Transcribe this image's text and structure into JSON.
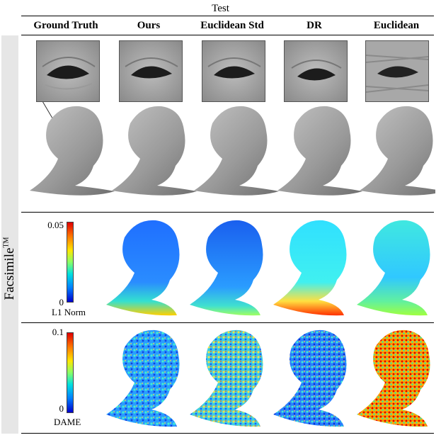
{
  "figure": {
    "header": "Test",
    "columns": [
      "Ground Truth",
      "Ours",
      "Euclidean Std",
      "DR",
      "Euclidean"
    ],
    "row_label": "Facsimile",
    "row_label_tm": "TM",
    "colorbars": [
      {
        "max": "0.05",
        "min": "0",
        "label": "L1 Norm"
      },
      {
        "max": "0.1",
        "min": "0",
        "label": "DAME"
      }
    ],
    "colors": {
      "skin": "#9a9a9a",
      "bar": "#e6e6e6"
    }
  }
}
